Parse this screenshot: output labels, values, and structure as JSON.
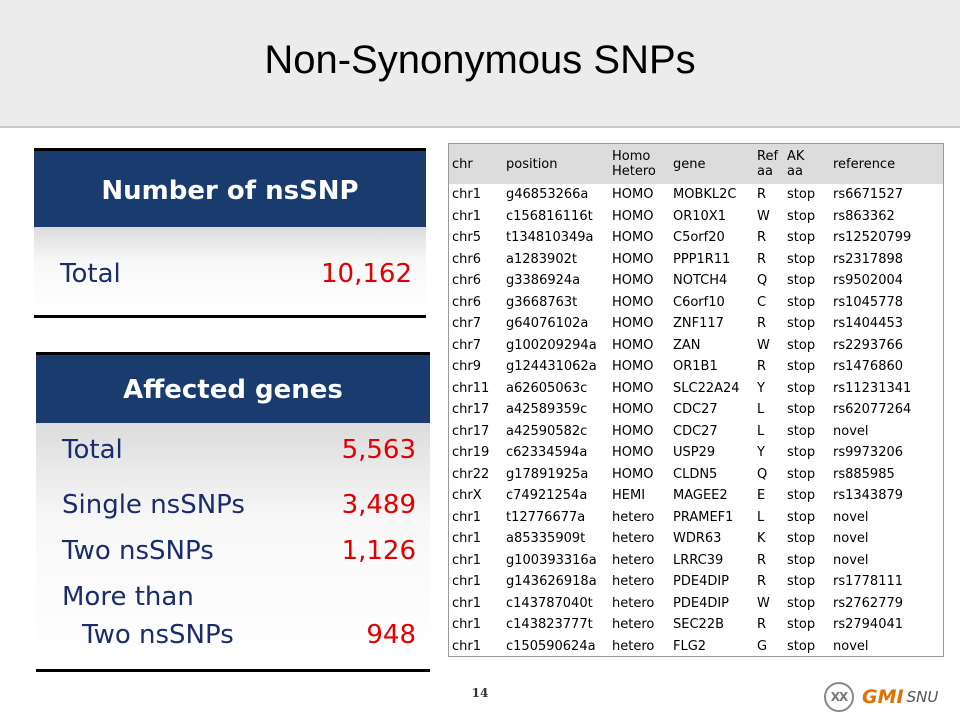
{
  "slide": {
    "title": "Non-Synonymous SNPs",
    "page_number": "14"
  },
  "nssnp_panel": {
    "header": "Number of nsSNP",
    "total_label": "Total",
    "total_value": "10,162"
  },
  "genes_panel": {
    "header": "Affected genes",
    "rows": [
      {
        "label": "Total",
        "value": "5,563"
      },
      {
        "label": "Single nsSNPs",
        "value": "3,489"
      },
      {
        "label": "Two nsSNPs",
        "value": "1,126"
      },
      {
        "label": "More than",
        "value": ""
      },
      {
        "label": "Two nsSNPs",
        "value": "948"
      }
    ]
  },
  "snp_table": {
    "columns": [
      "chr",
      "position",
      "Homo Hetero",
      "gene",
      "Ref aa",
      "AK aa",
      "reference"
    ],
    "rows": [
      [
        "chr1",
        "g46853266a",
        "HOMO",
        "MOBKL2C",
        "R",
        "stop",
        "rs6671527"
      ],
      [
        "chr1",
        "c156816116t",
        "HOMO",
        "OR10X1",
        "W",
        "stop",
        "rs863362"
      ],
      [
        "chr5",
        "t134810349a",
        "HOMO",
        "C5orf20",
        "R",
        "stop",
        "rs12520799"
      ],
      [
        "chr6",
        "a1283902t",
        "HOMO",
        "PPP1R11",
        "R",
        "stop",
        "rs2317898"
      ],
      [
        "chr6",
        "g3386924a",
        "HOMO",
        "NOTCH4",
        "Q",
        "stop",
        "rs9502004"
      ],
      [
        "chr6",
        "g3668763t",
        "HOMO",
        "C6orf10",
        "C",
        "stop",
        "rs1045778"
      ],
      [
        "chr7",
        "g64076102a",
        "HOMO",
        "ZNF117",
        "R",
        "stop",
        "rs1404453"
      ],
      [
        "chr7",
        "g100209294a",
        "HOMO",
        "ZAN",
        "W",
        "stop",
        "rs2293766"
      ],
      [
        "chr9",
        "g124431062a",
        "HOMO",
        "OR1B1",
        "R",
        "stop",
        "rs1476860"
      ],
      [
        "chr11",
        "a62605063c",
        "HOMO",
        "SLC22A24",
        "Y",
        "stop",
        "rs11231341"
      ],
      [
        "chr17",
        "a42589359c",
        "HOMO",
        "CDC27",
        "L",
        "stop",
        "rs62077264"
      ],
      [
        "chr17",
        "a42590582c",
        "HOMO",
        "CDC27",
        "L",
        "stop",
        "novel"
      ],
      [
        "chr19",
        "c62334594a",
        "HOMO",
        "USP29",
        "Y",
        "stop",
        "rs9973206"
      ],
      [
        "chr22",
        "g17891925a",
        "HOMO",
        "CLDN5",
        "Q",
        "stop",
        "rs885985"
      ],
      [
        "chrX",
        "c74921254a",
        "HEMI",
        "MAGEE2",
        "E",
        "stop",
        "rs1343879"
      ],
      [
        "chr1",
        "t12776677a",
        "hetero",
        "PRAMEF1",
        "L",
        "stop",
        "novel"
      ],
      [
        "chr1",
        "a85335909t",
        "hetero",
        "WDR63",
        "K",
        "stop",
        "novel"
      ],
      [
        "chr1",
        "g100393316a",
        "hetero",
        "LRRC39",
        "R",
        "stop",
        "novel"
      ],
      [
        "chr1",
        "g143626918a",
        "hetero",
        "PDE4DIP",
        "R",
        "stop",
        "rs1778111"
      ],
      [
        "chr1",
        "c143787040t",
        "hetero",
        "PDE4DIP",
        "W",
        "stop",
        "rs2762779"
      ],
      [
        "chr1",
        "c143823777t",
        "hetero",
        "SEC22B",
        "R",
        "stop",
        "rs2794041"
      ],
      [
        "chr1",
        "c150590624a",
        "hetero",
        "FLG2",
        "G",
        "stop",
        "novel"
      ]
    ]
  },
  "logo": {
    "icon_text": "XX",
    "brand": "GMI",
    "suffix": "SNU",
    "icon": "chromosome-circle-icon"
  }
}
